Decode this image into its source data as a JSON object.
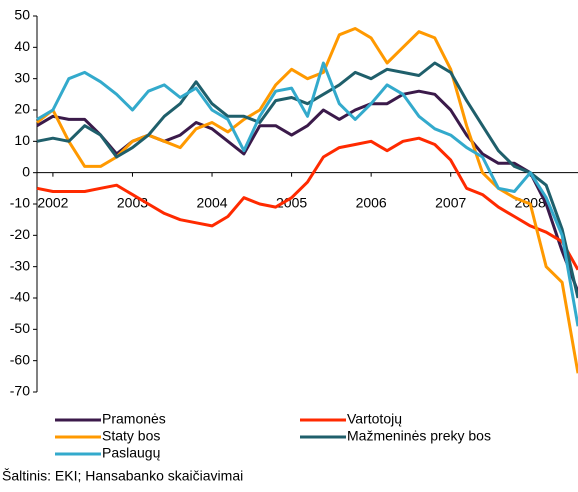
{
  "chart_data": {
    "type": "line",
    "x": [
      2001.8,
      2002.0,
      2002.2,
      2002.4,
      2002.6,
      2002.8,
      2003.0,
      2003.2,
      2003.4,
      2003.6,
      2003.8,
      2004.0,
      2004.2,
      2004.4,
      2004.6,
      2004.8,
      2005.0,
      2005.2,
      2005.4,
      2005.6,
      2005.8,
      2006.0,
      2006.2,
      2006.4,
      2006.6,
      2006.8,
      2007.0,
      2007.2,
      2007.4,
      2007.6,
      2007.8,
      2008.0,
      2008.2,
      2008.4,
      2008.6
    ],
    "xlim": [
      2001.8,
      2008.6
    ],
    "xticks": [
      2002,
      2003,
      2004,
      2005,
      2006,
      2007,
      2008
    ],
    "ylim": [
      -70,
      50
    ],
    "yticks": [
      50,
      40,
      30,
      20,
      10,
      0,
      -10,
      -20,
      -30,
      -40,
      -50,
      -60,
      -70
    ],
    "grid": false,
    "legend": "bottom",
    "series": [
      {
        "name": "Pramonės",
        "color": "#3b1a4a",
        "values": [
          15,
          18,
          17,
          17,
          12,
          6,
          10,
          12,
          10,
          12,
          16,
          14,
          10,
          6,
          15,
          15,
          12,
          15,
          20,
          17,
          20,
          22,
          22,
          25,
          26,
          25,
          20,
          12,
          6,
          3,
          3,
          0,
          -10,
          -25,
          -38
        ]
      },
      {
        "name": "Vartotojų",
        "color": "#ff2a00",
        "values": [
          -5,
          -6,
          -6,
          -6,
          -5,
          -4,
          -7,
          -10,
          -13,
          -15,
          -16,
          -17,
          -14,
          -8,
          -10,
          -11,
          -8,
          -3,
          5,
          8,
          9,
          10,
          7,
          10,
          11,
          9,
          4,
          -5,
          -7,
          -11,
          -14,
          -17,
          -19,
          -22,
          -31
        ]
      },
      {
        "name": "Staty bos",
        "color": "#ff9900",
        "values": [
          16,
          20,
          10,
          2,
          2,
          5,
          10,
          12,
          10,
          8,
          14,
          16,
          13,
          17,
          20,
          28,
          33,
          30,
          32,
          44,
          46,
          43,
          35,
          40,
          45,
          43,
          33,
          15,
          0,
          -5,
          -8,
          -10,
          -30,
          -35,
          -64
        ]
      },
      {
        "name": "Mažmeninės preky bos",
        "color": "#1f5f6b",
        "values": [
          10,
          11,
          10,
          15,
          12,
          5,
          8,
          12,
          18,
          22,
          29,
          22,
          18,
          18,
          16,
          23,
          24,
          22,
          25,
          28,
          32,
          30,
          33,
          32,
          31,
          35,
          32,
          23,
          15,
          7,
          2,
          0,
          -4,
          -18,
          -40
        ]
      },
      {
        "name": "Paslaugų",
        "color": "#33aacc",
        "values": [
          17,
          20,
          30,
          32,
          29,
          25,
          20,
          26,
          28,
          24,
          27,
          20,
          17,
          7,
          18,
          26,
          27,
          18,
          35,
          22,
          17,
          22,
          28,
          25,
          18,
          14,
          12,
          8,
          5,
          -5,
          -6,
          0,
          -8,
          -20,
          -49
        ]
      }
    ],
    "source": "Šaltinis: EKI; Hansabanko skaičiavimai"
  }
}
